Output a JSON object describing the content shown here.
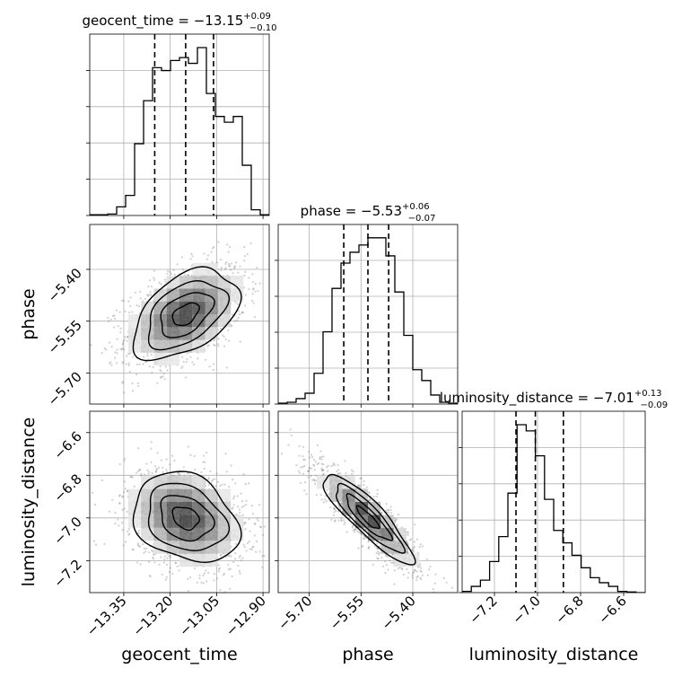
{
  "chart_data": {
    "type": "corner",
    "parameters": [
      "geocent_time",
      "phase",
      "luminosity_distance"
    ],
    "titles": [
      {
        "param": "geocent_time",
        "label": "geocent_time = ",
        "median": "−13.15",
        "plus": "+0.09",
        "minus": "−0.10"
      },
      {
        "param": "phase",
        "label": "phase = ",
        "median": "−5.53",
        "plus": "+0.06",
        "minus": "−0.07"
      },
      {
        "param": "luminosity_distance",
        "label": "luminosity_distance = ",
        "median": "−7.01",
        "plus": "+0.13",
        "minus": "−0.09"
      }
    ],
    "axis_labels": {
      "x": [
        "geocent_time",
        "phase",
        "luminosity_distance"
      ],
      "y": [
        "phase",
        "luminosity_distance"
      ]
    },
    "ticks": {
      "geocent_time": [
        {
          "v": -13.35,
          "t": "−13.35"
        },
        {
          "v": -13.2,
          "t": "−13.20"
        },
        {
          "v": -13.05,
          "t": "−13.05"
        },
        {
          "v": -12.9,
          "t": "−12.90"
        }
      ],
      "phase": [
        {
          "v": -5.7,
          "t": "−5.70"
        },
        {
          "v": -5.55,
          "t": "−5.55"
        },
        {
          "v": -5.4,
          "t": "−5.40"
        }
      ],
      "luminosity_distance": [
        {
          "v": -7.2,
          "t": "−7.2"
        },
        {
          "v": -7.0,
          "t": "−7.0"
        },
        {
          "v": -6.8,
          "t": "−6.8"
        },
        {
          "v": -6.6,
          "t": "−6.6"
        }
      ]
    },
    "ranges": {
      "geocent_time": [
        -13.46,
        -12.88
      ],
      "phase": [
        -5.79,
        -5.27
      ],
      "luminosity_distance": [
        -7.35,
        -6.5
      ]
    },
    "quantiles": {
      "geocent_time": [
        -13.25,
        -13.15,
        -13.06
      ],
      "phase": [
        -5.6,
        -5.53,
        -5.47
      ],
      "luminosity_distance": [
        -7.1,
        -7.01,
        -6.88
      ]
    },
    "histograms": {
      "geocent_time": {
        "edges_start": -13.46,
        "bin_width": 0.029,
        "counts": [
          0.5,
          0.5,
          1,
          6,
          14,
          50,
          80,
          103,
          101,
          108,
          110,
          106,
          117,
          85,
          69,
          65,
          69,
          35,
          4,
          0.5
        ]
      },
      "phase": {
        "edges_start": -5.79,
        "bin_width": 0.026,
        "counts": [
          0.5,
          1,
          3,
          6,
          17,
          40,
          64,
          78,
          84,
          88,
          92,
          92,
          82,
          62,
          38,
          19,
          13,
          5,
          1,
          0.5
        ]
      },
      "luminosity_distance": {
        "edges_start": -7.35,
        "bin_width": 0.0425,
        "counts": [
          1,
          5,
          10,
          25,
          45,
          80,
          135,
          130,
          110,
          75,
          50,
          40,
          30,
          20,
          12,
          8,
          5,
          1,
          0.5,
          0
        ]
      }
    },
    "grid": true
  }
}
